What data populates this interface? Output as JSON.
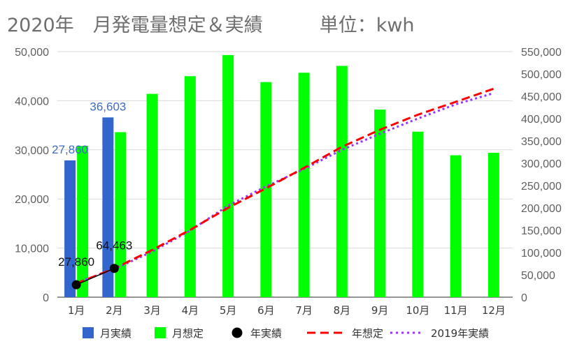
{
  "title": "2020年　月発電量想定＆実績　　　単位：kwh",
  "chart_data": {
    "type": "bar",
    "categories": [
      "1月",
      "2月",
      "3月",
      "4月",
      "5月",
      "6月",
      "7月",
      "8月",
      "9月",
      "10月",
      "11月",
      "12月"
    ],
    "y_left": {
      "min": 0,
      "max": 50000,
      "ticks": [
        "0",
        "10,000",
        "20,000",
        "30,000",
        "40,000",
        "50,000"
      ],
      "tick_values": [
        0,
        10000,
        20000,
        30000,
        40000,
        50000
      ]
    },
    "y_right": {
      "min": 0,
      "max": 550000,
      "ticks": [
        "0",
        "50,000",
        "100,000",
        "150,000",
        "200,000",
        "250,000",
        "300,000",
        "350,000",
        "400,000",
        "450,000",
        "500,000",
        "550,000"
      ],
      "tick_values": [
        0,
        50000,
        100000,
        150000,
        200000,
        250000,
        300000,
        350000,
        400000,
        450000,
        500000,
        550000
      ]
    },
    "grid": true,
    "legend_position": "bottom",
    "series": [
      {
        "name": "月実績",
        "type": "bar",
        "axis": "left",
        "color": "#3366cc",
        "values": [
          27860,
          36603,
          null,
          null,
          null,
          null,
          null,
          null,
          null,
          null,
          null,
          null
        ],
        "labels": [
          "27,860",
          "36,603"
        ]
      },
      {
        "name": "月想定",
        "type": "bar",
        "axis": "left",
        "color": "#00ff00",
        "values": [
          30800,
          33600,
          41400,
          45000,
          49300,
          43800,
          45700,
          47100,
          38200,
          33700,
          28900,
          29400
        ]
      },
      {
        "name": "年実績",
        "type": "line-points",
        "axis": "right",
        "color": "#000000",
        "values": [
          27860,
          64463,
          null,
          null,
          null,
          null,
          null,
          null,
          null,
          null,
          null,
          null
        ],
        "labels": [
          "27,860",
          "64,463"
        ]
      },
      {
        "name": "年想定",
        "type": "line-dashed",
        "axis": "right",
        "color": "#ff0000",
        "values": [
          30800,
          64400,
          105800,
          150800,
          200100,
          243900,
          289600,
          336700,
          374900,
          408600,
          437500,
          466900
        ]
      },
      {
        "name": "2019年実績",
        "type": "line-dotted",
        "axis": "right",
        "color": "#9933ff",
        "values": [
          32000,
          63000,
          102000,
          149000,
          205000,
          248000,
          287000,
          330000,
          366000,
          400000,
          432000,
          457000
        ]
      }
    ]
  }
}
